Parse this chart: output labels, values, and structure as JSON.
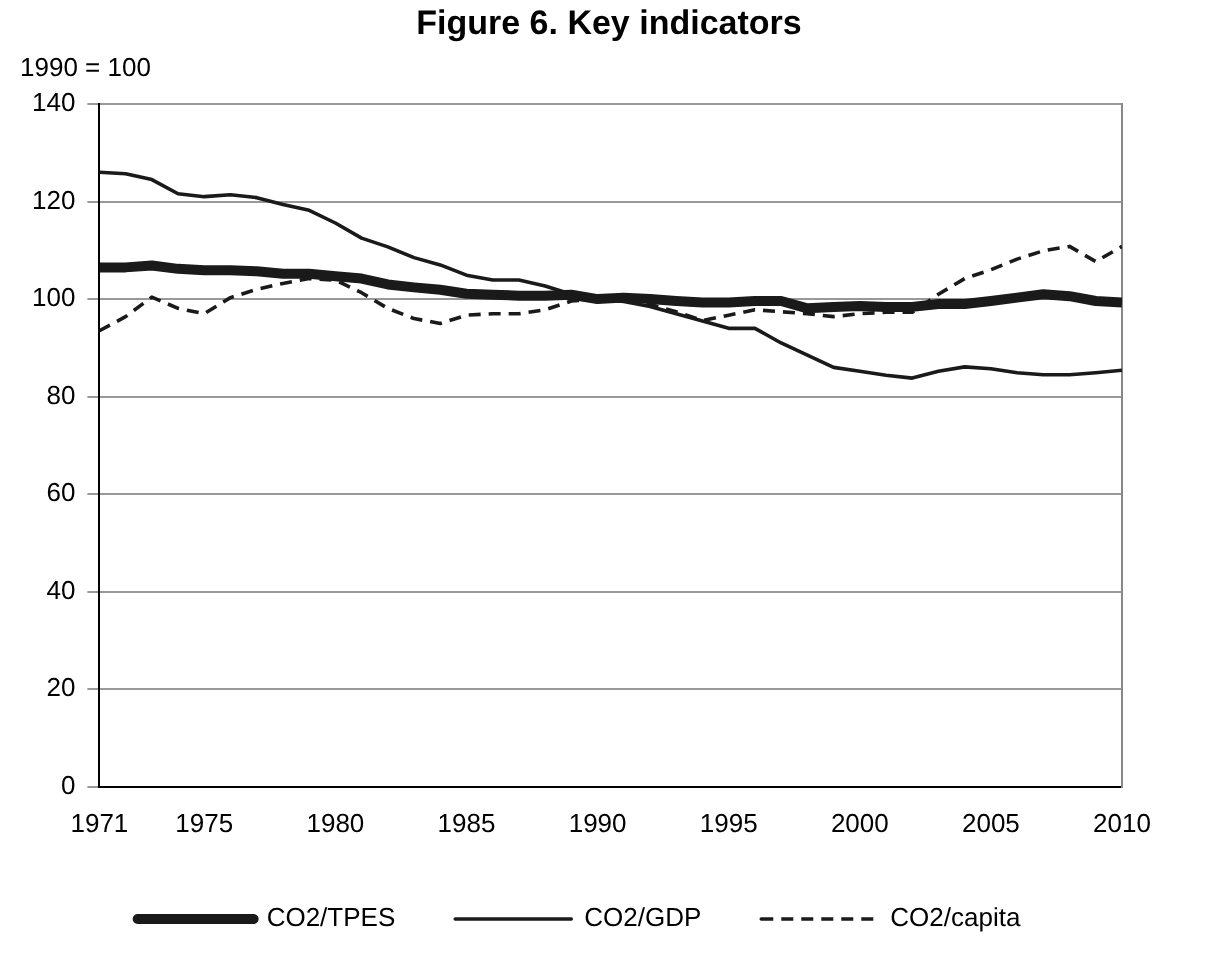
{
  "chart_data": {
    "type": "line",
    "title": "Figure 6. Key indicators",
    "annotations": [
      "1990 = 100"
    ],
    "x": [
      1971,
      1972,
      1973,
      1974,
      1975,
      1976,
      1977,
      1978,
      1979,
      1980,
      1981,
      1982,
      1983,
      1984,
      1985,
      1986,
      1987,
      1988,
      1989,
      1990,
      1991,
      1992,
      1993,
      1994,
      1995,
      1996,
      1997,
      1998,
      1999,
      2000,
      2001,
      2002,
      2003,
      2004,
      2005,
      2006,
      2007,
      2008,
      2009,
      2010
    ],
    "series": [
      {
        "name": "CO2/TPES",
        "color": "#1a1a1a",
        "line_style": "solid",
        "values": [
          106.5,
          106.5,
          106.9,
          106.2,
          105.9,
          105.9,
          105.7,
          105.2,
          105.2,
          104.7,
          104.2,
          103,
          102.4,
          101.9,
          101.1,
          100.9,
          100.7,
          100.7,
          100.9,
          100,
          100.3,
          100,
          99.6,
          99.3,
          99.3,
          99.6,
          99.6,
          98.1,
          98.4,
          98.6,
          98.4,
          98.4,
          99,
          99,
          99.6,
          100.3,
          101,
          100.6,
          99.6,
          99.3
        ]
      },
      {
        "name": "CO2/GDP",
        "color": "#1a1a1a",
        "line_style": "solid",
        "values": [
          126,
          125.7,
          124.5,
          121.6,
          121,
          121.4,
          120.8,
          119.4,
          118.2,
          115.6,
          112.5,
          110.7,
          108.5,
          107,
          104.9,
          103.9,
          103.9,
          102.7,
          101,
          100,
          99.5,
          98.5,
          97,
          95.5,
          94,
          94,
          91,
          88.5,
          86,
          85.2,
          84.4,
          83.8,
          85.2,
          86.1,
          85.7,
          84.9,
          84.5,
          84.5,
          84.9,
          85.4
        ]
      },
      {
        "name": "CO2/capita",
        "color": "#1a1a1a",
        "line_style": "dashed",
        "values": [
          93.5,
          96.4,
          100.4,
          98.1,
          97,
          100.3,
          102,
          103.2,
          104.2,
          103.9,
          101.3,
          98.1,
          96,
          95,
          96.7,
          97,
          97,
          97.8,
          99.6,
          100,
          99.6,
          98.9,
          97.4,
          95.6,
          96.7,
          97.8,
          97.4,
          97,
          96.4,
          97,
          97.3,
          97.3,
          101,
          104.2,
          106,
          108.2,
          109.9,
          110.8,
          107.7,
          110.8
        ]
      }
    ],
    "xlim": [
      1971,
      2010
    ],
    "xticks": [
      1971,
      1975,
      1980,
      1985,
      1990,
      1995,
      2000,
      2005,
      2010
    ],
    "ylim": [
      0,
      140
    ],
    "yticks": [
      0,
      20,
      40,
      60,
      80,
      100,
      120,
      140
    ],
    "grid": "y",
    "legend": "bottom",
    "marker": "none"
  }
}
